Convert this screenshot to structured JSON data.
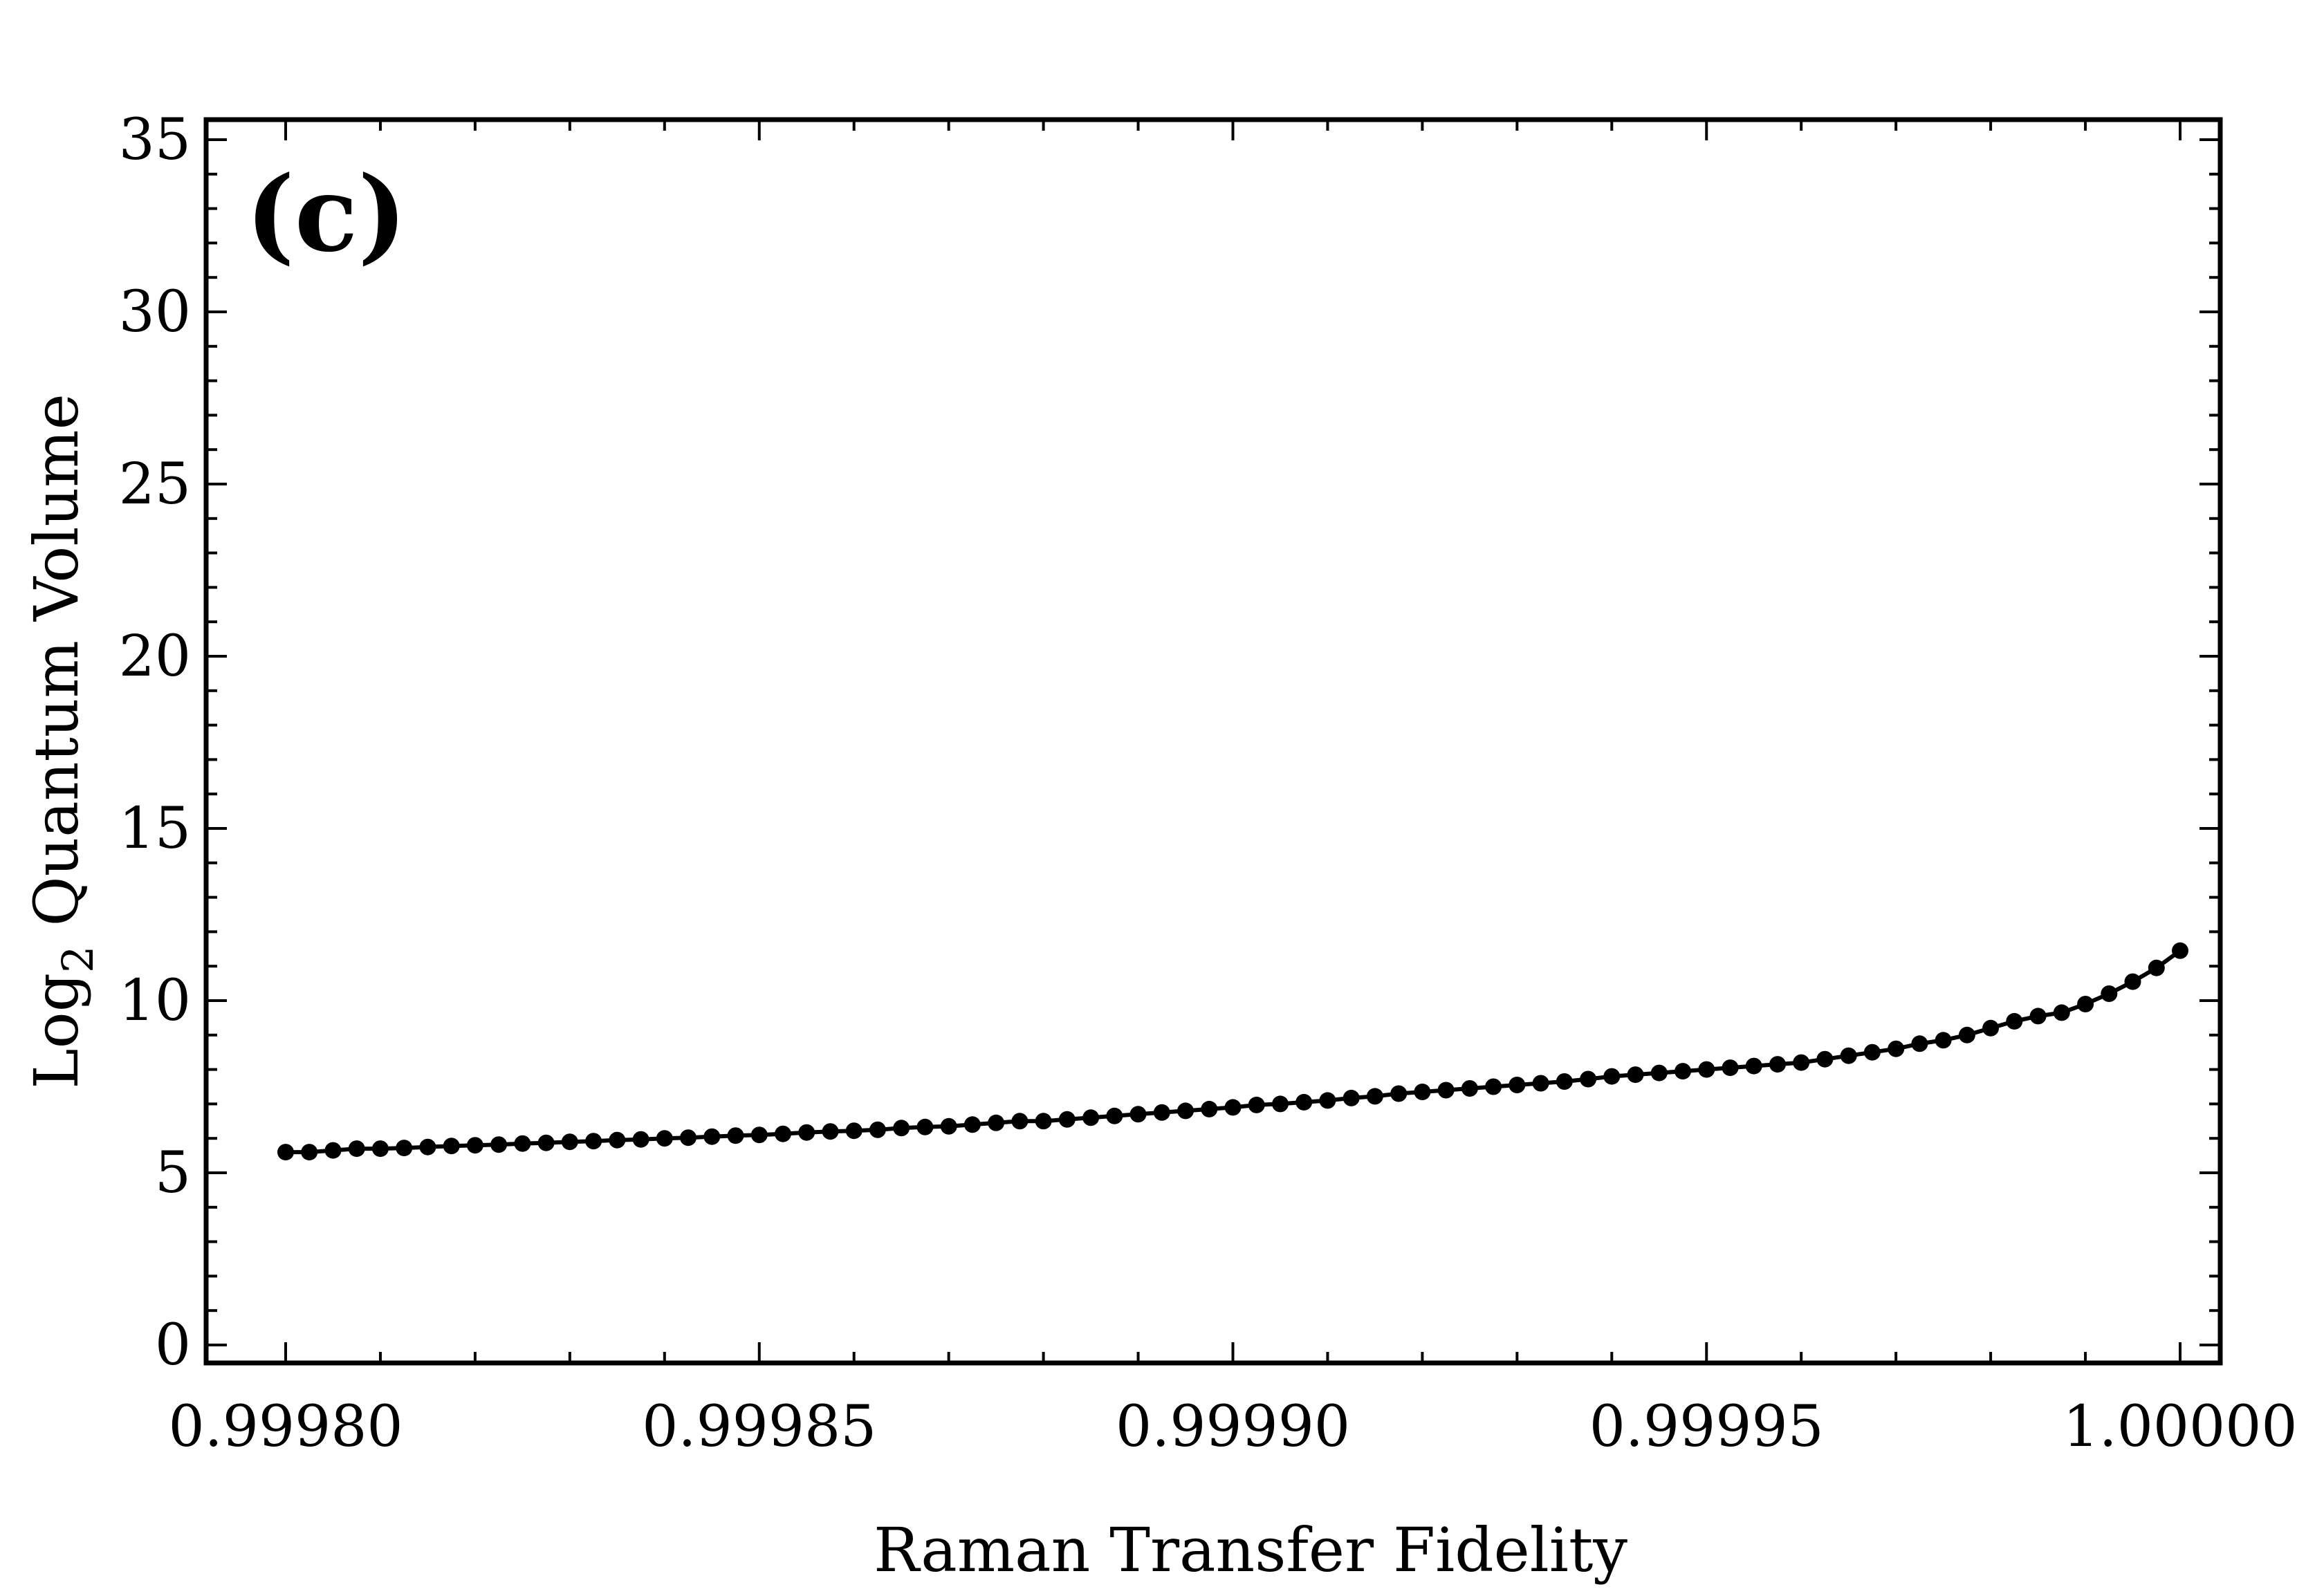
{
  "chart_data": {
    "type": "line",
    "panel_label": "(c)",
    "xlabel": "Raman Transfer Fidelity",
    "ylabel_main": "Log",
    "ylabel_sub": "2",
    "ylabel_rest": " Quantum Volume",
    "xlim": [
      0.9998,
      1.0
    ],
    "ylim": [
      0,
      35
    ],
    "x_ticks": [
      "0.99980",
      "0.99985",
      "0.99990",
      "0.99995",
      "1.00000"
    ],
    "x_tick_values": [
      0.9998,
      0.99985,
      0.9999,
      0.99995,
      1.0
    ],
    "y_ticks": [
      "0",
      "5",
      "10",
      "15",
      "20",
      "25",
      "30",
      "35"
    ],
    "y_tick_values": [
      0,
      5,
      10,
      15,
      20,
      25,
      30,
      35
    ],
    "line_color": "#000000",
    "series": [
      {
        "x": [
          0.9998,
          0.9998025,
          0.999805,
          0.9998075,
          0.99981,
          0.9998125,
          0.999815,
          0.9998175,
          0.99982,
          0.9998225,
          0.999825,
          0.9998275,
          0.99983,
          0.9998325,
          0.999835,
          0.9998375,
          0.99984,
          0.9998425,
          0.999845,
          0.9998475,
          0.99985,
          0.9998525,
          0.999855,
          0.9998575,
          0.99986,
          0.9998625,
          0.999865,
          0.9998675,
          0.99987,
          0.9998725,
          0.999875,
          0.9998775,
          0.99988,
          0.9998825,
          0.999885,
          0.9998875,
          0.99989,
          0.9998925,
          0.999895,
          0.9998975,
          0.9999,
          0.9999025,
          0.999905,
          0.9999075,
          0.99991,
          0.9999125,
          0.999915,
          0.9999175,
          0.99992,
          0.9999225,
          0.999925,
          0.9999275,
          0.99993,
          0.9999325,
          0.999935,
          0.9999375,
          0.99994,
          0.9999425,
          0.999945,
          0.9999475,
          0.99995,
          0.9999525,
          0.999955,
          0.9999575,
          0.99996,
          0.9999625,
          0.999965,
          0.9999675,
          0.99997,
          0.9999725,
          0.999975,
          0.9999775,
          0.99998,
          0.9999825,
          0.999985,
          0.9999875,
          0.99999,
          0.9999925,
          0.999995,
          0.9999975,
          1.0
        ],
        "y": [
          5.6,
          5.6,
          5.65,
          5.7,
          5.7,
          5.72,
          5.75,
          5.78,
          5.8,
          5.82,
          5.85,
          5.87,
          5.9,
          5.92,
          5.95,
          5.97,
          6.0,
          6.02,
          6.05,
          6.08,
          6.1,
          6.13,
          6.17,
          6.2,
          6.22,
          6.25,
          6.3,
          6.33,
          6.35,
          6.4,
          6.45,
          6.5,
          6.5,
          6.55,
          6.6,
          6.65,
          6.7,
          6.75,
          6.8,
          6.85,
          6.9,
          6.97,
          7.0,
          7.05,
          7.1,
          7.17,
          7.22,
          7.3,
          7.35,
          7.4,
          7.45,
          7.5,
          7.55,
          7.6,
          7.65,
          7.72,
          7.8,
          7.85,
          7.9,
          7.95,
          8.0,
          8.05,
          8.1,
          8.15,
          8.2,
          8.3,
          8.4,
          8.5,
          8.6,
          8.75,
          8.85,
          9.0,
          9.2,
          9.4,
          9.55,
          9.65,
          9.9,
          10.2,
          10.55,
          10.95,
          11.45
        ]
      }
    ]
  }
}
